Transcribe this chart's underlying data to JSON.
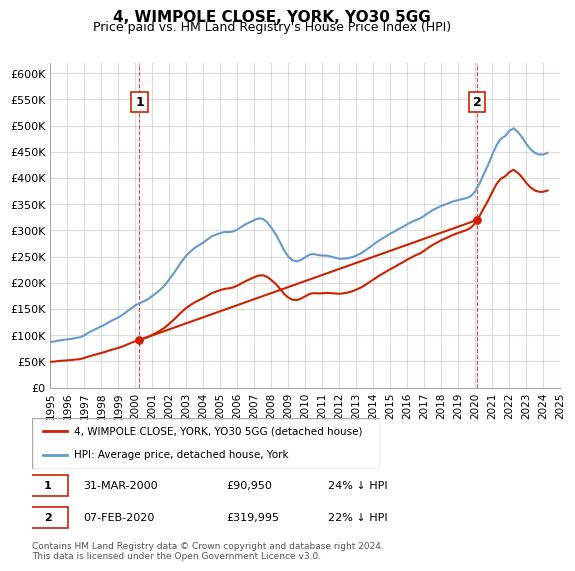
{
  "title": "4, WIMPOLE CLOSE, YORK, YO30 5GG",
  "subtitle": "Price paid vs. HM Land Registry's House Price Index (HPI)",
  "ylabel_ticks": [
    "£0",
    "£50K",
    "£100K",
    "£150K",
    "£200K",
    "£250K",
    "£300K",
    "£350K",
    "£400K",
    "£450K",
    "£500K",
    "£550K",
    "£600K"
  ],
  "ytick_values": [
    0,
    50000,
    100000,
    150000,
    200000,
    250000,
    300000,
    350000,
    400000,
    450000,
    500000,
    550000,
    600000
  ],
  "ylim": [
    0,
    620000
  ],
  "hpi_color": "#6699cc",
  "price_color": "#cc2200",
  "vline_color": "#cc0000",
  "annotation1": {
    "label": "1",
    "x_year": 2000.24,
    "price": 90950,
    "text": "31-MAR-2000   £90,950        24% ↓ HPI"
  },
  "annotation2": {
    "label": "2",
    "x_year": 2020.1,
    "price": 319995,
    "text": "07-FEB-2020   £319,995      22% ↓ HPI"
  },
  "legend_label1": "4, WIMPOLE CLOSE, YORK, YO30 5GG (detached house)",
  "legend_label2": "HPI: Average price, detached house, York",
  "footnote": "Contains HM Land Registry data © Crown copyright and database right 2024.\nThis data is licensed under the Open Government Licence v3.0.",
  "background_color": "#ffffff",
  "grid_color": "#dddddd",
  "hpi_years": [
    1995.0,
    1995.25,
    1995.5,
    1995.75,
    1996.0,
    1996.25,
    1996.5,
    1996.75,
    1997.0,
    1997.25,
    1997.5,
    1997.75,
    1998.0,
    1998.25,
    1998.5,
    1998.75,
    1999.0,
    1999.25,
    1999.5,
    1999.75,
    2000.0,
    2000.25,
    2000.5,
    2000.75,
    2001.0,
    2001.25,
    2001.5,
    2001.75,
    2002.0,
    2002.25,
    2002.5,
    2002.75,
    2003.0,
    2003.25,
    2003.5,
    2003.75,
    2004.0,
    2004.25,
    2004.5,
    2004.75,
    2005.0,
    2005.25,
    2005.5,
    2005.75,
    2006.0,
    2006.25,
    2006.5,
    2006.75,
    2007.0,
    2007.25,
    2007.5,
    2007.75,
    2008.0,
    2008.25,
    2008.5,
    2008.75,
    2009.0,
    2009.25,
    2009.5,
    2009.75,
    2010.0,
    2010.25,
    2010.5,
    2010.75,
    2011.0,
    2011.25,
    2011.5,
    2011.75,
    2012.0,
    2012.25,
    2012.5,
    2012.75,
    2013.0,
    2013.25,
    2013.5,
    2013.75,
    2014.0,
    2014.25,
    2014.5,
    2014.75,
    2015.0,
    2015.25,
    2015.5,
    2015.75,
    2016.0,
    2016.25,
    2016.5,
    2016.75,
    2017.0,
    2017.25,
    2017.5,
    2017.75,
    2018.0,
    2018.25,
    2018.5,
    2018.75,
    2019.0,
    2019.25,
    2019.5,
    2019.75,
    2020.0,
    2020.25,
    2020.5,
    2020.75,
    2021.0,
    2021.25,
    2021.5,
    2021.75,
    2022.0,
    2022.25,
    2022.5,
    2022.75,
    2023.0,
    2023.25,
    2023.5,
    2023.75,
    2024.0,
    2024.25
  ],
  "hpi_values": [
    87000,
    88000,
    90000,
    91000,
    92000,
    93000,
    95000,
    96000,
    100000,
    105000,
    109000,
    113000,
    117000,
    121000,
    126000,
    130000,
    134000,
    139000,
    145000,
    151000,
    157000,
    161000,
    165000,
    169000,
    175000,
    181000,
    188000,
    196000,
    207000,
    218000,
    230000,
    242000,
    252000,
    260000,
    267000,
    272000,
    277000,
    283000,
    289000,
    292000,
    295000,
    297000,
    297000,
    298000,
    302000,
    307000,
    312000,
    316000,
    320000,
    323000,
    322000,
    316000,
    305000,
    293000,
    278000,
    262000,
    250000,
    243000,
    241000,
    244000,
    249000,
    254000,
    255000,
    253000,
    252000,
    252000,
    250000,
    248000,
    246000,
    246000,
    247000,
    249000,
    252000,
    256000,
    261000,
    267000,
    273000,
    279000,
    284000,
    289000,
    294000,
    298000,
    303000,
    307000,
    312000,
    316000,
    320000,
    323000,
    328000,
    334000,
    339000,
    343000,
    347000,
    350000,
    353000,
    356000,
    358000,
    360000,
    362000,
    366000,
    375000,
    390000,
    408000,
    425000,
    445000,
    463000,
    475000,
    480000,
    490000,
    495000,
    488000,
    478000,
    465000,
    455000,
    448000,
    445000,
    445000,
    448000
  ],
  "price_paid_years": [
    2000.24,
    2020.1
  ],
  "price_paid_values": [
    90950,
    319995
  ],
  "xlim": [
    1995.0,
    2025.0
  ],
  "xtick_years": [
    1995,
    1996,
    1997,
    1998,
    1999,
    2000,
    2001,
    2002,
    2003,
    2004,
    2005,
    2006,
    2007,
    2008,
    2009,
    2010,
    2011,
    2012,
    2013,
    2014,
    2015,
    2016,
    2017,
    2018,
    2019,
    2020,
    2021,
    2022,
    2023,
    2024,
    2025
  ]
}
